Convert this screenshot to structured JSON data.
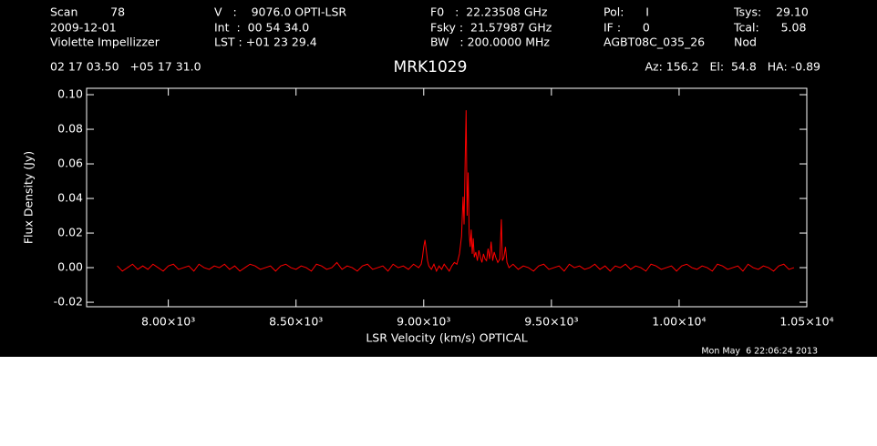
{
  "header": {
    "columns": [
      [
        "Scan         78",
        "2009-12-01",
        "Violette Impellizzer"
      ],
      [
        "V   :    9076.0 OPTI-LSR",
        "Int  :  00 54 34.0",
        "LST : +01 23 29.4"
      ],
      [
        "F0   :  22.23508 GHz",
        "Fsky :  21.57987 GHz",
        "BW   : 200.0000 MHz"
      ],
      [
        "Pol:      I",
        "IF :      0",
        "AGBT08C_035_26"
      ],
      [
        "Tsys:    29.10",
        "Tcal:      5.08",
        "Nod"
      ]
    ],
    "coords": "02 17 03.50   +05 17 31.0",
    "pointing": "Az: 156.2   El:  54.8   HA: -0.89",
    "timestamp": "Mon May  6 22:06:24 2013"
  },
  "chart_data": {
    "type": "line",
    "title": "MRK1029",
    "xlabel": "LSR Velocity (km/s) OPTICAL",
    "ylabel": "Flux Density (Jy)",
    "color": "#ff0000",
    "xlim": [
      7680,
      10500
    ],
    "ylim": [
      -0.0226,
      0.1037
    ],
    "xticks": [
      {
        "value": 8000,
        "label": "8.00×10³"
      },
      {
        "value": 8500,
        "label": "8.50×10³"
      },
      {
        "value": 9000,
        "label": "9.00×10³"
      },
      {
        "value": 9500,
        "label": "9.50×10³"
      },
      {
        "value": 10000,
        "label": "1.00×10⁴"
      },
      {
        "value": 10500,
        "label": "1.05×10⁴"
      }
    ],
    "yticks": [
      -0.02,
      {
        "value": 0,
        "label": "0.00"
      },
      0.02,
      0.04,
      0.06,
      0.08,
      {
        "value": 0.1,
        "label": "0.10"
      }
    ],
    "x": [
      7800,
      7820,
      7840,
      7860,
      7880,
      7900,
      7920,
      7940,
      7960,
      7980,
      8000,
      8020,
      8040,
      8060,
      8080,
      8100,
      8120,
      8140,
      8160,
      8180,
      8200,
      8220,
      8240,
      8260,
      8280,
      8300,
      8320,
      8340,
      8360,
      8380,
      8400,
      8420,
      8440,
      8460,
      8480,
      8500,
      8520,
      8540,
      8560,
      8580,
      8600,
      8620,
      8640,
      8660,
      8680,
      8700,
      8720,
      8740,
      8760,
      8780,
      8800,
      8820,
      8840,
      8860,
      8880,
      8900,
      8920,
      8940,
      8960,
      8980,
      8990,
      8995,
      9000,
      9005,
      9010,
      9015,
      9020,
      9030,
      9040,
      9050,
      9060,
      9070,
      9080,
      9090,
      9100,
      9110,
      9120,
      9130,
      9140,
      9148,
      9154,
      9158,
      9162,
      9166,
      9170,
      9174,
      9178,
      9182,
      9186,
      9190,
      9194,
      9198,
      9204,
      9210,
      9216,
      9222,
      9228,
      9234,
      9240,
      9246,
      9252,
      9258,
      9264,
      9270,
      9276,
      9282,
      9290,
      9298,
      9304,
      9308,
      9314,
      9320,
      9326,
      9334,
      9350,
      9370,
      9390,
      9410,
      9430,
      9450,
      9470,
      9490,
      9510,
      9530,
      9550,
      9570,
      9590,
      9610,
      9630,
      9650,
      9670,
      9690,
      9710,
      9730,
      9750,
      9770,
      9790,
      9810,
      9830,
      9850,
      9870,
      9890,
      9910,
      9930,
      9950,
      9970,
      9990,
      10010,
      10030,
      10050,
      10070,
      10090,
      10110,
      10130,
      10150,
      10170,
      10190,
      10210,
      10230,
      10250,
      10270,
      10290,
      10310,
      10330,
      10350,
      10370,
      10390,
      10410,
      10430,
      10450
    ],
    "values": [
      0.001,
      -0.002,
      0.0,
      0.002,
      -0.001,
      0.001,
      -0.001,
      0.002,
      0.0,
      -0.002,
      0.001,
      0.002,
      -0.001,
      0.0,
      0.001,
      -0.002,
      0.002,
      0.0,
      -0.001,
      0.001,
      0.0,
      0.002,
      -0.001,
      0.001,
      -0.002,
      0.0,
      0.002,
      0.001,
      -0.001,
      0.0,
      0.001,
      -0.002,
      0.001,
      0.002,
      0.0,
      -0.001,
      0.001,
      0.0,
      -0.002,
      0.002,
      0.001,
      -0.001,
      0.0,
      0.003,
      -0.001,
      0.001,
      0.0,
      -0.002,
      0.001,
      0.002,
      -0.001,
      0.0,
      0.001,
      -0.002,
      0.002,
      0.0,
      0.001,
      -0.001,
      0.002,
      0.0,
      0.002,
      0.006,
      0.012,
      0.016,
      0.01,
      0.004,
      0.001,
      -0.001,
      0.002,
      -0.002,
      0.001,
      -0.001,
      0.002,
      0.0,
      -0.002,
      0.001,
      0.003,
      0.002,
      0.008,
      0.018,
      0.041,
      0.025,
      0.06,
      0.091,
      0.03,
      0.055,
      0.02,
      0.012,
      0.022,
      0.008,
      0.017,
      0.006,
      0.009,
      0.004,
      0.01,
      0.006,
      0.003,
      0.008,
      0.005,
      0.004,
      0.011,
      0.005,
      0.015,
      0.004,
      0.009,
      0.006,
      0.003,
      0.005,
      0.028,
      0.004,
      0.006,
      0.012,
      0.003,
      0.0,
      0.002,
      -0.001,
      0.001,
      0.0,
      -0.002,
      0.001,
      0.002,
      -0.001,
      0.0,
      0.001,
      -0.002,
      0.002,
      0.0,
      0.001,
      -0.001,
      0.0,
      0.002,
      -0.001,
      0.001,
      -0.002,
      0.001,
      0.0,
      0.002,
      -0.001,
      0.001,
      0.0,
      -0.002,
      0.002,
      0.001,
      -0.001,
      0.0,
      0.001,
      -0.002,
      0.001,
      0.002,
      0.0,
      -0.001,
      0.001,
      0.0,
      -0.002,
      0.002,
      0.001,
      -0.001,
      0.0,
      0.001,
      -0.002,
      0.002,
      0.0,
      -0.001,
      0.001,
      0.0,
      -0.002,
      0.001,
      0.002,
      -0.001,
      0.0
    ]
  }
}
